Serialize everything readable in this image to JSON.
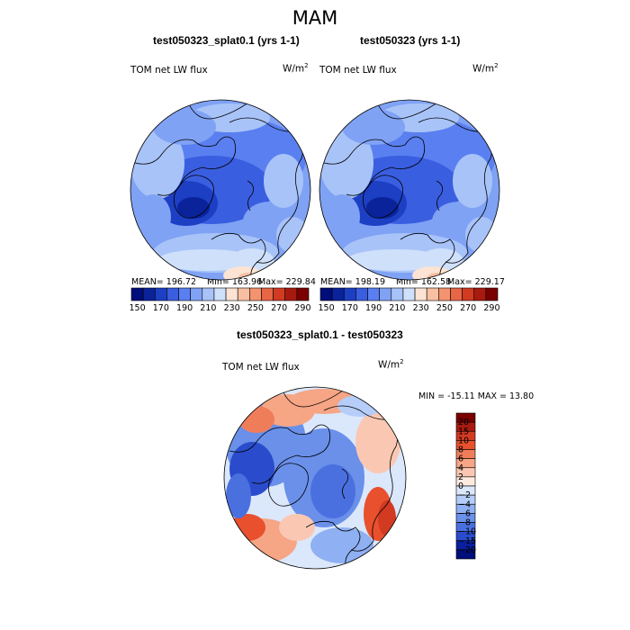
{
  "chart_data": [
    {
      "type": "heatmap",
      "projection": "north polar stereographic",
      "title": "test050323_splat0.1 (yrs 1-1)",
      "variable_label": "TOM net LW flux",
      "units": "W/m",
      "units_exp": "2",
      "stats": {
        "mean": "MEAN= 196.72",
        "min": "Min= 163.96",
        "max": "Max= 229.84"
      },
      "colorbar": {
        "orientation": "horizontal",
        "levels": [
          150,
          160,
          170,
          180,
          190,
          200,
          210,
          220,
          230,
          240,
          250,
          260,
          270,
          280,
          290
        ],
        "tick_labels": [
          "150",
          "170",
          "190",
          "210",
          "230",
          "250",
          "270",
          "290"
        ]
      }
    },
    {
      "type": "heatmap",
      "projection": "north polar stereographic",
      "title": "test050323 (yrs 1-1)",
      "variable_label": "TOM net LW flux",
      "units": "W/m",
      "units_exp": "2",
      "stats": {
        "mean": "MEAN= 198.19",
        "min": "Min= 162.58",
        "max": "Max= 229.17"
      },
      "colorbar": {
        "orientation": "horizontal",
        "levels": [
          150,
          160,
          170,
          180,
          190,
          200,
          210,
          220,
          230,
          240,
          250,
          260,
          270,
          280,
          290
        ],
        "tick_labels": [
          "150",
          "170",
          "190",
          "210",
          "230",
          "250",
          "270",
          "290"
        ]
      }
    },
    {
      "type": "heatmap",
      "projection": "north polar stereographic",
      "title": "test050323_splat0.1 - test050323",
      "variable_label": "TOM net LW flux",
      "units": "W/m",
      "units_exp": "2",
      "stats": {
        "minmax": "MIN = -15.11 MAX =  13.80"
      },
      "colorbar": {
        "orientation": "vertical",
        "levels": [
          20,
          15,
          10,
          8,
          6,
          4,
          2,
          0,
          -2,
          -4,
          -6,
          -8,
          -10,
          -15,
          -20
        ],
        "tick_labels": [
          "20",
          "15",
          "10",
          "8",
          "6",
          "4",
          "2",
          "0",
          "−2",
          "−4",
          "−6",
          "−8",
          "−10",
          "−15",
          "−20"
        ]
      }
    }
  ],
  "page": {
    "season_title": "MAM"
  },
  "colors": {
    "abs_scale": [
      "#000d7a",
      "#0a239a",
      "#1d3fc4",
      "#3a5ee0",
      "#5a7ff0",
      "#7fa2f4",
      "#a8c3f8",
      "#cfe0fb",
      "#fce3d3",
      "#f9bfa3",
      "#f3936f",
      "#e86545",
      "#d23a22",
      "#a81a10",
      "#7a0000"
    ],
    "diff_scale": [
      "#7a0000",
      "#a81a10",
      "#d23a22",
      "#e8502e",
      "#f07d5a",
      "#f6a585",
      "#fac8b2",
      "#fdebe0",
      "#dbe7fb",
      "#b5cdf8",
      "#8fb0f2",
      "#6a90ea",
      "#4a70e0",
      "#2a4ccc",
      "#0a1f9e",
      "#000d7a"
    ],
    "land_outline": "#000000"
  }
}
